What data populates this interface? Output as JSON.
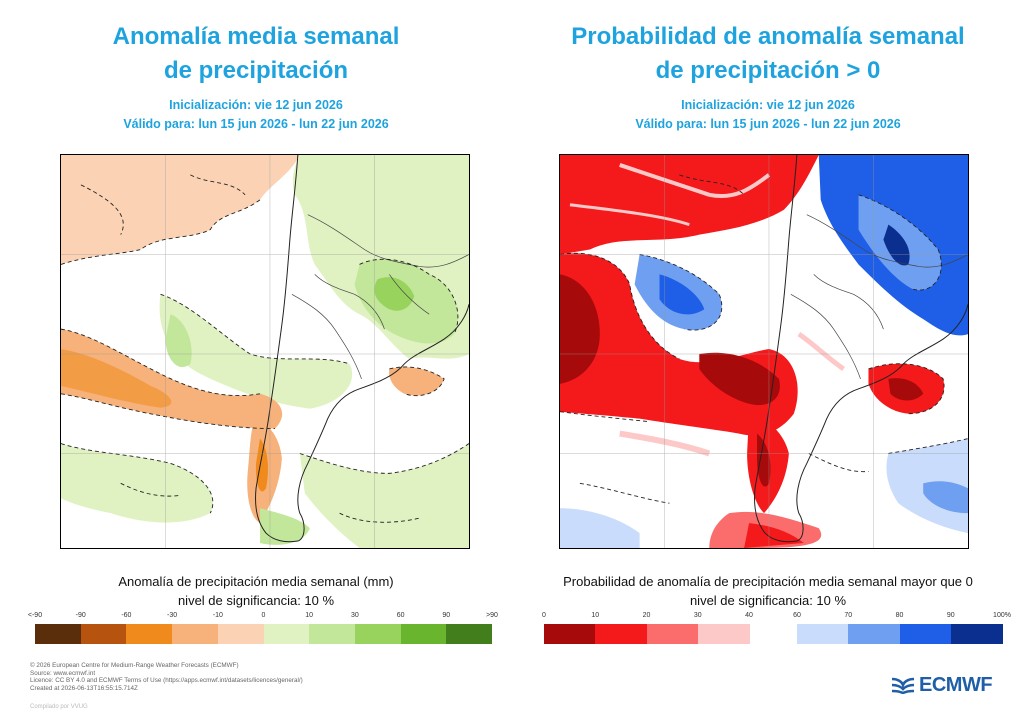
{
  "left": {
    "title_line1": "Anomalía media semanal",
    "title_line2": "de precipitación",
    "init": "Inicialización: vie 12 jun 2026",
    "valid": "Válido para: lun 15 jun 2026 - lun 22 jun 2026",
    "caption1": "Anomalía de precipitación media semanal (mm)",
    "caption2": "nivel de significancia: 10 %",
    "colorbar": {
      "ticks": [
        "<-90",
        "-90",
        "-60",
        "-30",
        "-10",
        "0",
        "10",
        "30",
        "60",
        "90",
        ">90"
      ],
      "colors": [
        "#5a2e0a",
        "#b5530f",
        "#f08a1c",
        "#f6b27a",
        "#fbd3b4",
        "#e0f2c2",
        "#c2e79a",
        "#98d35e",
        "#69b62e",
        "#437e1d"
      ]
    }
  },
  "right": {
    "title_line1": "Probabilidad de anomalía semanal",
    "title_line2": "de precipitación > 0",
    "init": "Inicialización: vie 12 jun 2026",
    "valid": "Válido para: lun 15 jun 2026 - lun 22 jun 2026",
    "caption1": "Probabilidad de anomalía de precipitación media semanal mayor que 0",
    "caption2": "nivel de significancia: 10 %",
    "colorbar": {
      "ticks": [
        "0",
        "10",
        "20",
        "30",
        "40",
        "60",
        "70",
        "80",
        "90",
        "100%"
      ],
      "colors_low": [
        "#a70a0a",
        "#f4191b",
        "#fb6d6d",
        "#fdc8c8"
      ],
      "colors_high": [
        "#c9dcfb",
        "#6f9ff0",
        "#1f5fe8",
        "#0b2f8e"
      ]
    }
  },
  "footer": {
    "line1": "© 2026 European Centre for Medium-Range Weather Forecasts (ECMWF)",
    "line2": "Source: www.ecmwf.int",
    "line3": "Licence: CC BY 4.0 and ECMWF Terms of Use (https://apps.ecmwf.int/datasets/licences/general/)",
    "line4": "Created at 2026-06-13T16:55:15.714Z",
    "line5": "Compilado por VVUG"
  },
  "logo_text": "ECMWF"
}
